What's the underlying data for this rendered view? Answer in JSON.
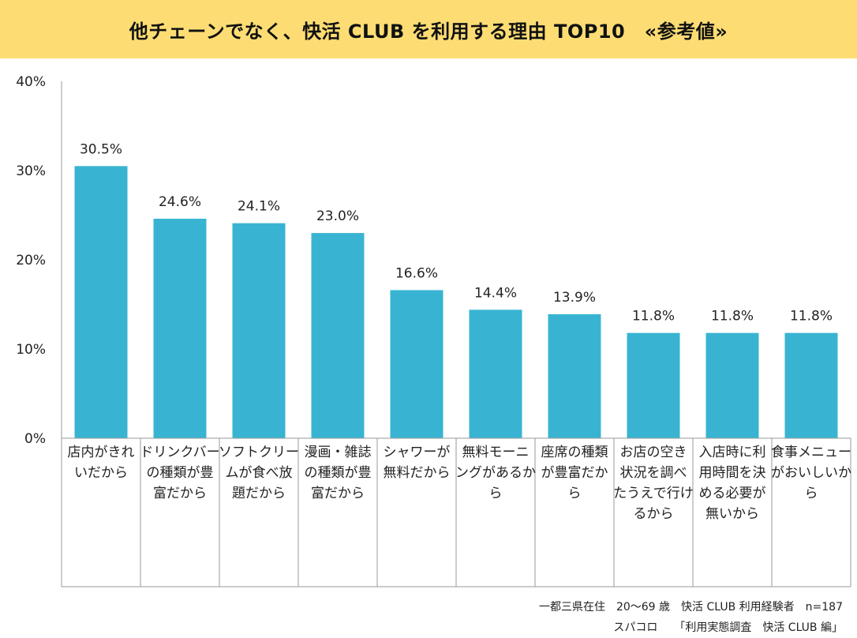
{
  "header": {
    "title": "他チェーンでなく、快活 CLUB を利用する理由 TOP10　«参考値»"
  },
  "chart_data": {
    "type": "bar",
    "categories": [
      [
        "店内がきれ",
        "いだから"
      ],
      [
        "ドリンクバー",
        "の種類が豊",
        "富だから"
      ],
      [
        "ソフトクリー",
        "ムが食べ放",
        "題だから"
      ],
      [
        "漫画・雑誌",
        "の種類が豊",
        "富だから"
      ],
      [
        "シャワーが",
        "無料だから"
      ],
      [
        "無料モーニ",
        "ングがあるか",
        "ら"
      ],
      [
        "座席の種類",
        "が豊富だか",
        "ら"
      ],
      [
        "お店の空き",
        "状況を調べ",
        "たうえで行け",
        "るから"
      ],
      [
        "入店時に利",
        "用時間を決",
        "める必要が",
        "無いから"
      ],
      [
        "食事メニュー",
        "がおいしいか",
        "ら"
      ]
    ],
    "values": [
      30.5,
      24.6,
      24.1,
      23.0,
      16.6,
      14.4,
      13.9,
      11.8,
      11.8,
      11.8
    ],
    "value_labels": [
      "30.5%",
      "24.6%",
      "24.1%",
      "23.0%",
      "16.6%",
      "14.4%",
      "13.9%",
      "11.8%",
      "11.8%",
      "11.8%"
    ],
    "yticks": [
      "0%",
      "10%",
      "20%",
      "30%",
      "40%"
    ],
    "ylim": [
      0,
      40
    ],
    "bar_color": "#38b4d2",
    "grid": false
  },
  "footnotes": {
    "line1": "一都三県在住　20～69 歳　快活 CLUB 利用経験者　n=187",
    "line2": "スパコロ　　「利用実態調査　快活 CLUB 編」"
  }
}
